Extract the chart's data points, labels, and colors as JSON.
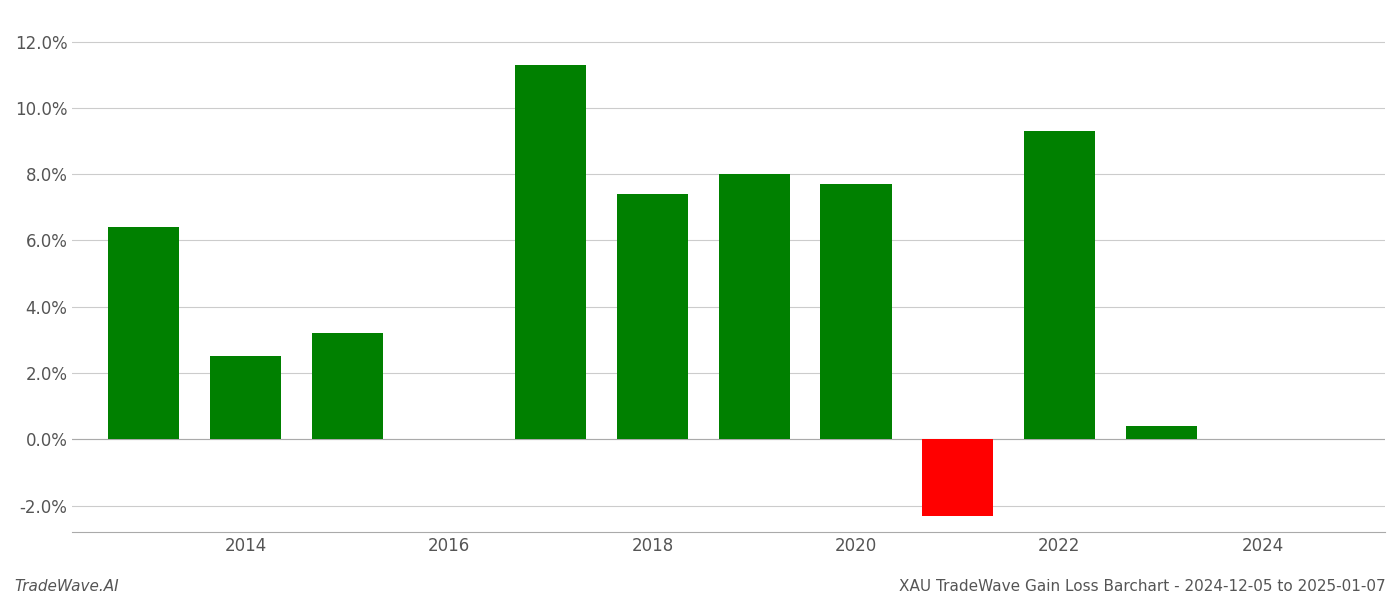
{
  "years": [
    2013,
    2014,
    2015,
    2017,
    2018,
    2019,
    2020,
    2021,
    2022,
    2023
  ],
  "values": [
    0.064,
    0.025,
    0.032,
    0.113,
    0.074,
    0.08,
    0.077,
    -0.023,
    0.093,
    0.004
  ],
  "colors": [
    "#008000",
    "#008000",
    "#008000",
    "#008000",
    "#008000",
    "#008000",
    "#008000",
    "#ff0000",
    "#008000",
    "#008000"
  ],
  "title": "XAU TradeWave Gain Loss Barchart - 2024-12-05 to 2025-01-07",
  "watermark": "TradeWave.AI",
  "xlim": [
    2012.3,
    2025.2
  ],
  "ylim": [
    -0.028,
    0.128
  ],
  "yticks": [
    -0.02,
    0.0,
    0.02,
    0.04,
    0.06,
    0.08,
    0.1,
    0.12
  ],
  "xticks": [
    2014,
    2016,
    2018,
    2020,
    2022,
    2024
  ],
  "bar_width": 0.7,
  "grid_color": "#cccccc",
  "background_color": "#ffffff",
  "title_fontsize": 11,
  "watermark_fontsize": 11,
  "tick_fontsize": 12
}
